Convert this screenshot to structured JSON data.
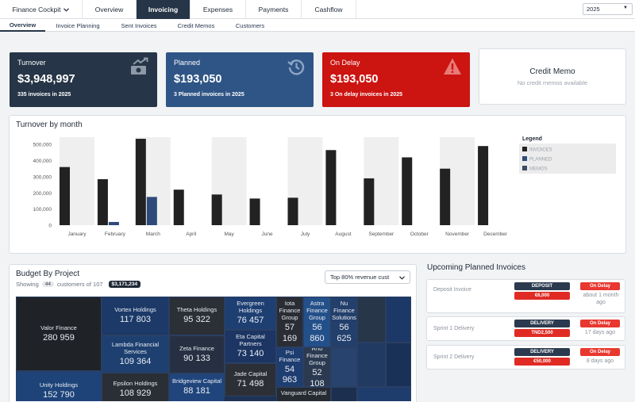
{
  "nav": {
    "brand": "Finance Cockpit",
    "tabs": [
      "Overview",
      "Invoicing",
      "Expenses",
      "Payments",
      "Cashflow"
    ],
    "active_tab": "Invoicing",
    "year": "2025"
  },
  "subnav": {
    "tabs": [
      "Overview",
      "Invoice Planning",
      "Sent Invoices",
      "Credit Memos",
      "Customers"
    ],
    "active": "Overview"
  },
  "kpis": {
    "turnover": {
      "title": "Turnover",
      "value": "$3,948,997",
      "sub": "335 invoices in 2025",
      "color": "#263547"
    },
    "planned": {
      "title": "Planned",
      "value": "$193,050",
      "sub": "3 Planned invoices in 2025",
      "color": "#2f5586"
    },
    "delay": {
      "title": "On Delay",
      "value": "$193,050",
      "sub": "3 On delay invoices in 2025",
      "color": "#cc1411"
    },
    "credit": {
      "title": "Credit Memo",
      "sub": "No credit memos available"
    }
  },
  "turnover_chart": {
    "panel_title": "Turnover by month",
    "legend_title": "Legend",
    "chart_data": {
      "type": "bar",
      "categories": [
        "January",
        "February",
        "March",
        "April",
        "May",
        "June",
        "July",
        "August",
        "September",
        "October",
        "November",
        "December"
      ],
      "series": [
        {
          "name": "INVOICES",
          "color": "#222222",
          "values": [
            360000,
            285000,
            535000,
            220000,
            190000,
            165000,
            170000,
            465000,
            290000,
            420000,
            350000,
            490000
          ]
        },
        {
          "name": "PLANNED",
          "color": "#2f4a7a",
          "values": [
            0,
            20000,
            175000,
            0,
            0,
            0,
            0,
            0,
            0,
            0,
            0,
            0
          ]
        },
        {
          "name": "MEMOS",
          "color": "#3a4a60",
          "values": [
            0,
            0,
            0,
            0,
            0,
            0,
            0,
            0,
            0,
            0,
            0,
            0
          ]
        }
      ],
      "yticks": [
        0,
        100000,
        200000,
        300000,
        400000,
        500000
      ],
      "ytick_labels": [
        "0",
        "100,000",
        "200,000",
        "300,000",
        "400,000",
        "500,000"
      ],
      "ylim": [
        0,
        545000
      ],
      "legend_position": "right"
    }
  },
  "budget": {
    "title": "Budget By Project",
    "showing_prefix": "Showing",
    "showing_count": "44",
    "showing_suffix": "customers of 107",
    "total": "$3,171,234",
    "filter": "Top 80% revenue cust",
    "items": [
      {
        "name": "Valor Finance",
        "value": "280 959"
      },
      {
        "name": "Unity Holdings",
        "value": "152 790"
      },
      {
        "name": "Vortex Holdings",
        "value": "117 803"
      },
      {
        "name": "Lambda Financial Services",
        "value": "109 364"
      },
      {
        "name": "Epsilon Holdings",
        "value": "108 929"
      },
      {
        "name": "Theta Holdings",
        "value": "95 322"
      },
      {
        "name": "Zeta Finance",
        "value": "90 133"
      },
      {
        "name": "Bridgeview Capital",
        "value": "88 181"
      },
      {
        "name": "Evergreen Holdings",
        "value": "76 457"
      },
      {
        "name": "Eta Capital Partners",
        "value": "73 140"
      },
      {
        "name": "Jade Capital",
        "value": "71 498"
      },
      {
        "name": "Iota Finance Group",
        "value": "57 169"
      },
      {
        "name": "Astra Finance Group",
        "value": "56 860"
      },
      {
        "name": "Nu Finance Solutions",
        "value": "56 625"
      },
      {
        "name": "Psi Finance",
        "value": "54 963"
      },
      {
        "name": "Rho Finance Group",
        "value": "52 108"
      },
      {
        "name": "Vanguard Capital",
        "value": ""
      }
    ]
  },
  "upcoming": {
    "title": "Upcoming Planned Invoices",
    "items": [
      {
        "name": "Deposit Invoice",
        "type": "DEPOSIT",
        "amount": "€6,000",
        "status": "On Delay",
        "ago": "about 1 month ago"
      },
      {
        "name": "Sprint 1 Delivery",
        "type": "DELIVERY",
        "amount": "TND2,500",
        "status": "On Delay",
        "ago": "17 days ago"
      },
      {
        "name": "Sprint 2 Delivery",
        "type": "DELIVERY",
        "amount": "€50,000",
        "status": "On Delay",
        "ago": "8 days ago"
      }
    ]
  }
}
